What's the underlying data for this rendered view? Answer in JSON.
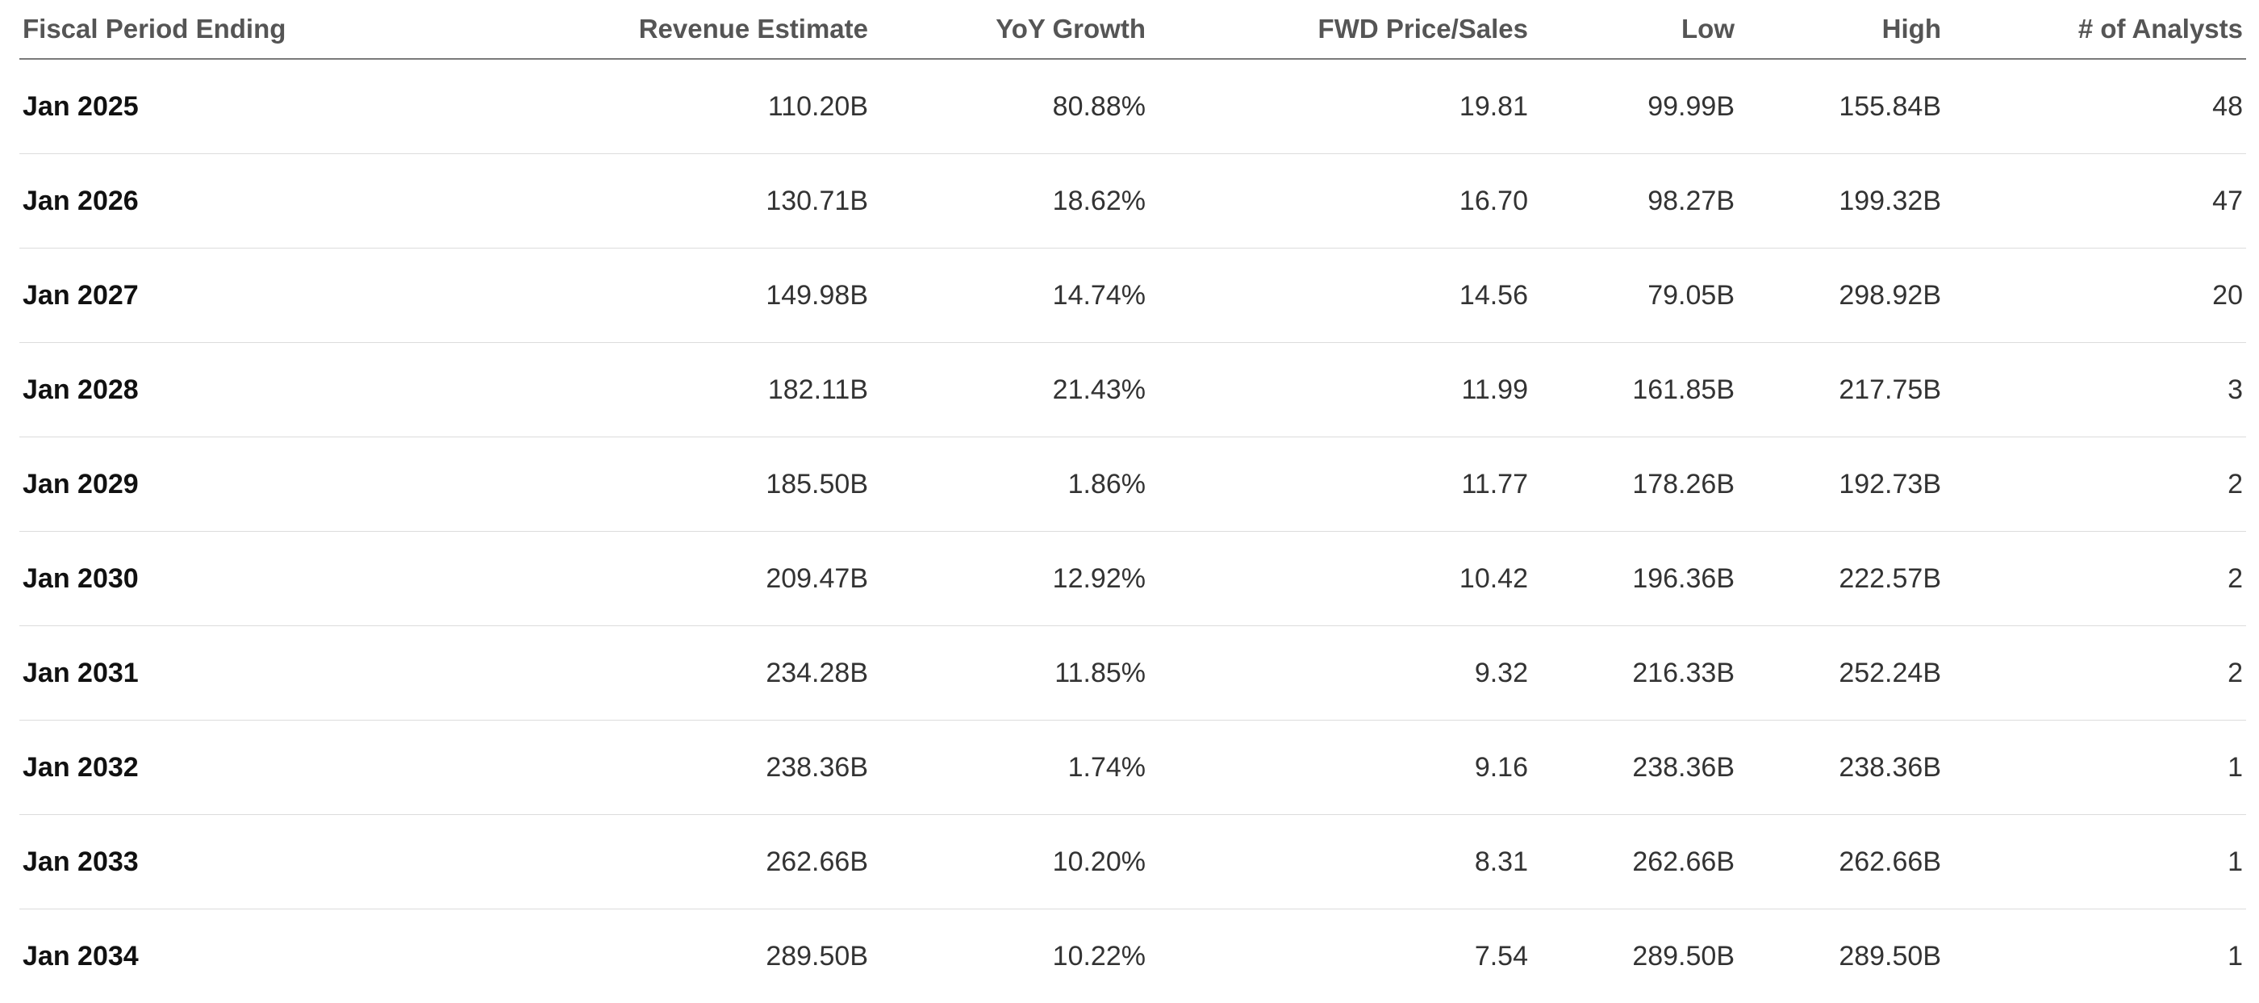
{
  "table": {
    "columns": [
      {
        "key": "period",
        "label": "Fiscal Period Ending"
      },
      {
        "key": "revenue",
        "label": "Revenue Estimate"
      },
      {
        "key": "yoy",
        "label": "YoY Growth"
      },
      {
        "key": "ps",
        "label": "FWD Price/Sales"
      },
      {
        "key": "low",
        "label": "Low"
      },
      {
        "key": "high",
        "label": "High"
      },
      {
        "key": "analysts",
        "label": "# of Analysts"
      }
    ],
    "rows": [
      {
        "period": "Jan 2025",
        "revenue": "110.20B",
        "yoy": "80.88%",
        "ps": "19.81",
        "low": "99.99B",
        "high": "155.84B",
        "analysts": "48"
      },
      {
        "period": "Jan 2026",
        "revenue": "130.71B",
        "yoy": "18.62%",
        "ps": "16.70",
        "low": "98.27B",
        "high": "199.32B",
        "analysts": "47"
      },
      {
        "period": "Jan 2027",
        "revenue": "149.98B",
        "yoy": "14.74%",
        "ps": "14.56",
        "low": "79.05B",
        "high": "298.92B",
        "analysts": "20"
      },
      {
        "period": "Jan 2028",
        "revenue": "182.11B",
        "yoy": "21.43%",
        "ps": "11.99",
        "low": "161.85B",
        "high": "217.75B",
        "analysts": "3"
      },
      {
        "period": "Jan 2029",
        "revenue": "185.50B",
        "yoy": "1.86%",
        "ps": "11.77",
        "low": "178.26B",
        "high": "192.73B",
        "analysts": "2"
      },
      {
        "period": "Jan 2030",
        "revenue": "209.47B",
        "yoy": "12.92%",
        "ps": "10.42",
        "low": "196.36B",
        "high": "222.57B",
        "analysts": "2"
      },
      {
        "period": "Jan 2031",
        "revenue": "234.28B",
        "yoy": "11.85%",
        "ps": "9.32",
        "low": "216.33B",
        "high": "252.24B",
        "analysts": "2"
      },
      {
        "period": "Jan 2032",
        "revenue": "238.36B",
        "yoy": "1.74%",
        "ps": "9.16",
        "low": "238.36B",
        "high": "238.36B",
        "analysts": "1"
      },
      {
        "period": "Jan 2033",
        "revenue": "262.66B",
        "yoy": "10.20%",
        "ps": "8.31",
        "low": "262.66B",
        "high": "262.66B",
        "analysts": "1"
      },
      {
        "period": "Jan 2034",
        "revenue": "289.50B",
        "yoy": "10.22%",
        "ps": "7.54",
        "low": "289.50B",
        "high": "289.50B",
        "analysts": "1"
      }
    ]
  }
}
